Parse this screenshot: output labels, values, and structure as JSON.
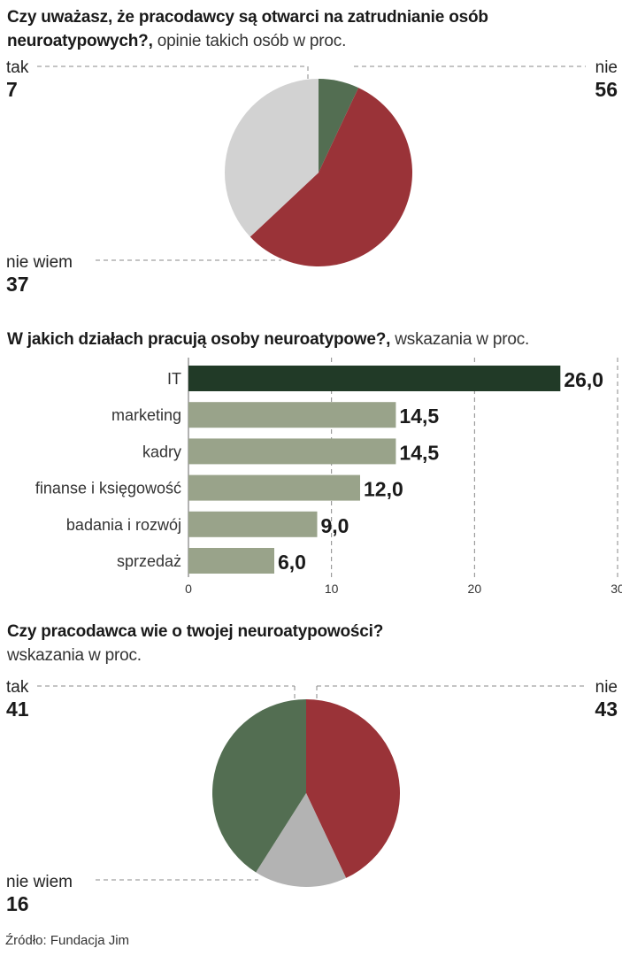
{
  "chart_data": [
    {
      "type": "pie",
      "title": "Czy uważasz, że pracodawcy są otwarci na zatrudnianie osób neuroatypowych?,",
      "subtitle": "opinie takich osób w proc.",
      "slices": [
        {
          "label": "tak",
          "value": 7,
          "color": "#536e52"
        },
        {
          "label": "nie",
          "value": 56,
          "color": "#9a3338"
        },
        {
          "label": "nie wiem",
          "value": 37,
          "color": "#d2d2d2"
        }
      ]
    },
    {
      "type": "bar",
      "orientation": "horizontal",
      "title": "W jakich działach pracują osoby neuroatypowe?,",
      "subtitle": "wskazania w proc.",
      "categories": [
        "IT",
        "marketing",
        "kadry",
        "finanse i księgowość",
        "badania i rozwój",
        "sprzedaż"
      ],
      "values": [
        26.0,
        14.5,
        14.5,
        12.0,
        9.0,
        6.0
      ],
      "value_labels": [
        "26,0",
        "14,5",
        "14,5",
        "12,0",
        "9,0",
        "6,0"
      ],
      "xlim": [
        0,
        30
      ],
      "xticks": [
        "0",
        "10",
        "20",
        "30"
      ],
      "grid": true,
      "highlight_color": "#213a27",
      "bar_color": "#99a38a"
    },
    {
      "type": "pie",
      "title": "Czy pracodawca wie o twojej neuroatypowości?",
      "subtitle": "wskazania w proc.",
      "slices": [
        {
          "label": "nie",
          "value": 43,
          "color": "#9a3338"
        },
        {
          "label": "nie wiem",
          "value": 16,
          "color": "#b3b3b3"
        },
        {
          "label": "tak",
          "value": 41,
          "color": "#536e52"
        }
      ]
    }
  ],
  "source": "Źródło: Fundacja Jim"
}
